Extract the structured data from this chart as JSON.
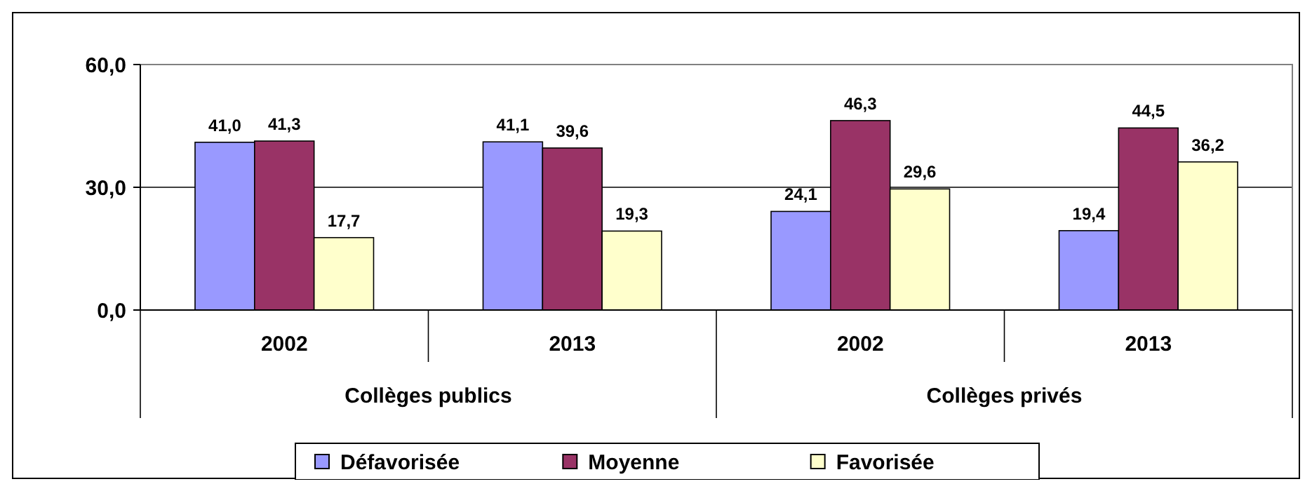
{
  "chart_data": {
    "type": "bar",
    "categories": [
      "2002",
      "2013",
      "2002",
      "2013"
    ],
    "series": [
      {
        "name": "Défavorisée",
        "color": "#9999ff",
        "values": [
          41.0,
          41.1,
          24.1,
          19.4
        ],
        "value_labels": [
          "41,0",
          "41,1",
          "24,1",
          "19,4"
        ]
      },
      {
        "name": "Moyenne",
        "color": "#993366",
        "values": [
          41.3,
          39.6,
          46.3,
          44.5
        ],
        "value_labels": [
          "41,3",
          "39,6",
          "46,3",
          "44,5"
        ]
      },
      {
        "name": "Favorisée",
        "color": "#ffffcc",
        "values": [
          17.7,
          19.3,
          29.6,
          36.2
        ],
        "value_labels": [
          "17,7",
          "19,3",
          "29,6",
          "36,2"
        ]
      }
    ],
    "annotations": [
      "Collèges publics",
      "Collèges privés"
    ],
    "ylim": [
      0,
      60
    ],
    "yticks": [
      {
        "value": 0,
        "label": "0,0"
      },
      {
        "value": 30,
        "label": "30,0"
      },
      {
        "value": 60,
        "label": "60,0"
      }
    ],
    "grid": "y",
    "legend": "bottom"
  }
}
